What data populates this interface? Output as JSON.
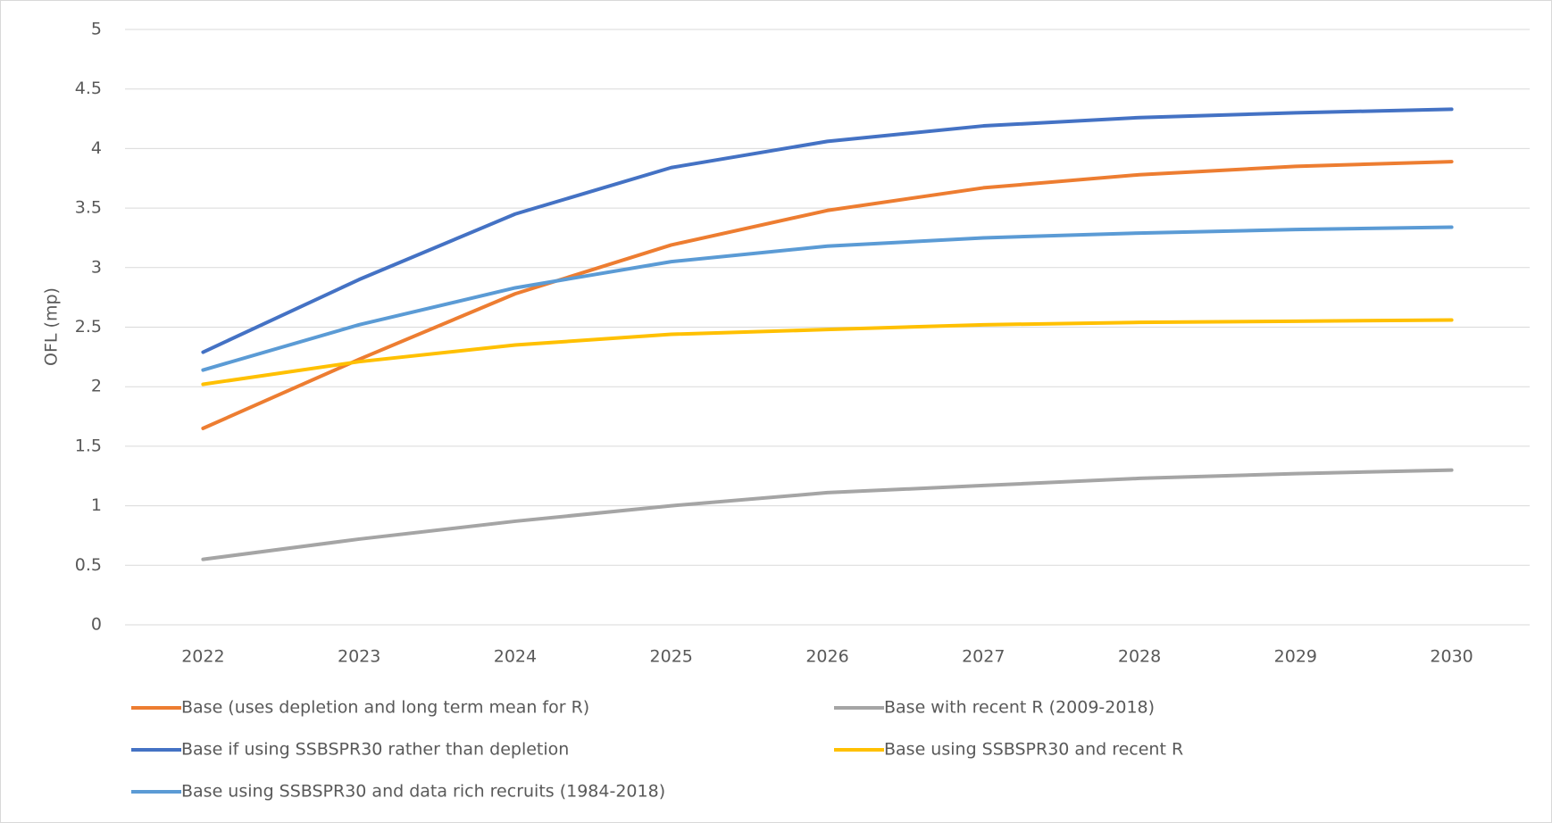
{
  "chart_data": {
    "type": "line",
    "y_label": "OFL (mp)",
    "categories": [
      "2022",
      "2023",
      "2024",
      "2025",
      "2026",
      "2027",
      "2028",
      "2029",
      "2030"
    ],
    "series": [
      {
        "name": "Base (uses depletion and long term mean for R)",
        "color": "#ed7d31",
        "values": [
          1.65,
          2.23,
          2.78,
          3.19,
          3.48,
          3.67,
          3.78,
          3.85,
          3.89
        ]
      },
      {
        "name": "Base with recent R (2009-2018)",
        "color": "#a5a5a5",
        "values": [
          0.55,
          0.72,
          0.87,
          1.0,
          1.11,
          1.17,
          1.23,
          1.27,
          1.3
        ]
      },
      {
        "name": "Base if using SSBSPR30 rather than depletion",
        "color": "#4472c4",
        "values": [
          2.29,
          2.9,
          3.45,
          3.84,
          4.06,
          4.19,
          4.26,
          4.3,
          4.33
        ]
      },
      {
        "name": "Base using SSBSPR30 and recent R",
        "color": "#ffc000",
        "values": [
          2.02,
          2.21,
          2.35,
          2.44,
          2.48,
          2.52,
          2.54,
          2.55,
          2.56
        ]
      },
      {
        "name": "Base using SSBSPR30 and data rich recruits (1984-2018)",
        "color": "#5b9bd5",
        "values": [
          2.14,
          2.52,
          2.83,
          3.05,
          3.18,
          3.25,
          3.29,
          3.32,
          3.34
        ]
      }
    ],
    "ylim": [
      0,
      5
    ],
    "yticks": [
      0,
      0.5,
      1,
      1.5,
      2,
      2.5,
      3,
      3.5,
      4,
      4.5,
      5
    ],
    "grid": true,
    "legend": "bottom"
  }
}
